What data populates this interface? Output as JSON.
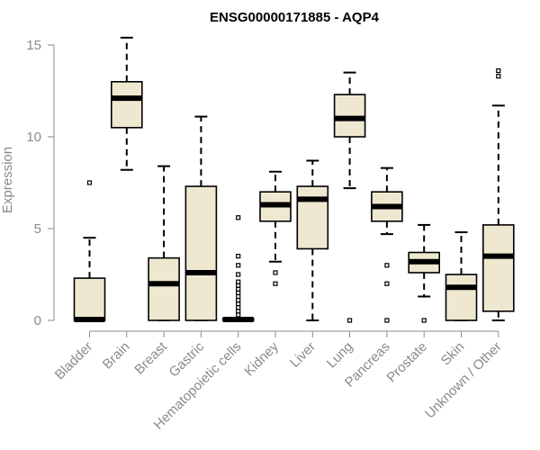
{
  "chart_data": {
    "type": "box",
    "title": "ENSG00000171885 - AQP4",
    "xlabel": "",
    "ylabel": "Expression",
    "ylim": [
      0,
      15
    ],
    "yticks": [
      0,
      5,
      10,
      15
    ],
    "colors": {
      "box_fill": "#efe8d0",
      "stroke": "#000000",
      "axis": "#8a8a8a"
    },
    "categories": [
      "Bladder",
      "Brain",
      "Breast",
      "Gastric",
      "Hematopoietic cells",
      "Kidney",
      "Liver",
      "Lung",
      "Pancreas",
      "Prostate",
      "Skin",
      "Unknown / Other"
    ],
    "boxes": [
      {
        "name": "Bladder",
        "whisker_low": 0.0,
        "q1": 0.0,
        "median": 0.05,
        "q3": 2.3,
        "whisker_high": 4.5,
        "outliers": [
          7.5
        ]
      },
      {
        "name": "Brain",
        "whisker_low": 8.2,
        "q1": 10.5,
        "median": 12.1,
        "q3": 13.0,
        "whisker_high": 15.4,
        "outliers": []
      },
      {
        "name": "Breast",
        "whisker_low": 0.0,
        "q1": 0.0,
        "median": 2.0,
        "q3": 3.4,
        "whisker_high": 8.4,
        "outliers": []
      },
      {
        "name": "Gastric",
        "whisker_low": 0.0,
        "q1": 0.0,
        "median": 2.6,
        "q3": 7.3,
        "whisker_high": 11.1,
        "outliers": []
      },
      {
        "name": "Hematopoietic cells",
        "whisker_low": 0.0,
        "q1": 0.0,
        "median": 0.05,
        "q3": 0.1,
        "whisker_high": 0.1,
        "outliers": [
          0.3,
          0.5,
          0.7,
          0.9,
          1.1,
          1.3,
          1.5,
          1.7,
          1.9,
          2.1,
          2.5,
          3.0,
          3.5,
          5.6
        ]
      },
      {
        "name": "Kidney",
        "whisker_low": 3.2,
        "q1": 5.4,
        "median": 6.3,
        "q3": 7.0,
        "whisker_high": 8.1,
        "outliers": [
          2.0,
          2.6
        ]
      },
      {
        "name": "Liver",
        "whisker_low": 0.0,
        "q1": 3.9,
        "median": 6.6,
        "q3": 7.3,
        "whisker_high": 8.7,
        "outliers": []
      },
      {
        "name": "Lung",
        "whisker_low": 7.2,
        "q1": 10.0,
        "median": 11.0,
        "q3": 12.3,
        "whisker_high": 13.5,
        "outliers": [
          0.0
        ]
      },
      {
        "name": "Pancreas",
        "whisker_low": 4.7,
        "q1": 5.4,
        "median": 6.2,
        "q3": 7.0,
        "whisker_high": 8.3,
        "outliers": [
          0.0,
          2.0,
          3.0
        ]
      },
      {
        "name": "Prostate",
        "whisker_low": 1.3,
        "q1": 2.6,
        "median": 3.2,
        "q3": 3.7,
        "whisker_high": 5.2,
        "outliers": [
          0.0
        ]
      },
      {
        "name": "Skin",
        "whisker_low": 0.0,
        "q1": 0.0,
        "median": 1.8,
        "q3": 2.5,
        "whisker_high": 4.8,
        "outliers": []
      },
      {
        "name": "Unknown / Other",
        "whisker_low": 0.0,
        "q1": 0.5,
        "median": 3.5,
        "q3": 5.2,
        "whisker_high": 11.7,
        "outliers": [
          13.3,
          13.6
        ]
      }
    ]
  }
}
